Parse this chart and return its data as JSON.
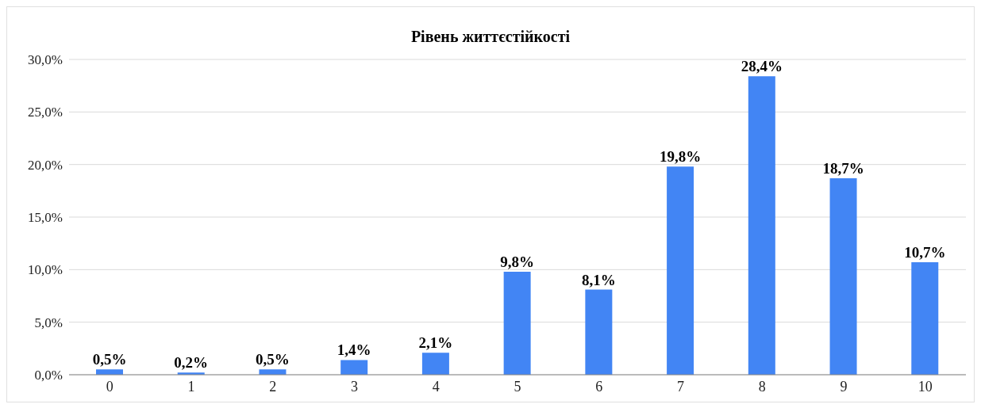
{
  "chart_data": {
    "type": "bar",
    "title": "Рівень життєстійкості",
    "categories": [
      "0",
      "1",
      "2",
      "3",
      "4",
      "5",
      "6",
      "7",
      "8",
      "9",
      "10"
    ],
    "values": [
      0.5,
      0.2,
      0.5,
      1.4,
      2.1,
      9.8,
      8.1,
      19.8,
      28.4,
      18.7,
      10.7
    ],
    "value_labels": [
      "0,5%",
      "0,2%",
      "0,5%",
      "1,4%",
      "2,1%",
      "9,8%",
      "8,1%",
      "19,8%",
      "28,4%",
      "18,7%",
      "10,7%"
    ],
    "color": "#4285f4",
    "ylim": [
      0,
      30
    ],
    "yticks": [
      {
        "value": 0,
        "label": "0,0%"
      },
      {
        "value": 5,
        "label": "5,0%"
      },
      {
        "value": 10,
        "label": "10,0%"
      },
      {
        "value": 15,
        "label": "15,0%"
      },
      {
        "value": 20,
        "label": "20,0%"
      },
      {
        "value": 25,
        "label": "25,0%"
      },
      {
        "value": 30,
        "label": "30,0%"
      }
    ],
    "grid": "y"
  }
}
